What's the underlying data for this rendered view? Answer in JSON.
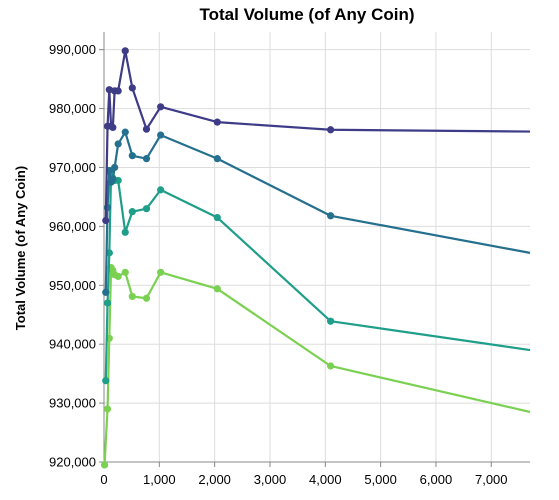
{
  "chart_data": {
    "type": "line",
    "title": "Total Volume (of Any Coin)",
    "xlabel": "",
    "ylabel": "Total Volume (of Any Coin)",
    "xlim": [
      0,
      7700
    ],
    "ylim": [
      920000,
      993000
    ],
    "grid": true,
    "legend": "none",
    "x_ticks": [
      {
        "value": 0,
        "label": "0"
      },
      {
        "value": 1000,
        "label": "1,000"
      },
      {
        "value": 2000,
        "label": "2,000"
      },
      {
        "value": 3000,
        "label": "3,000"
      },
      {
        "value": 4000,
        "label": "4,000"
      },
      {
        "value": 5000,
        "label": "5,000"
      },
      {
        "value": 6000,
        "label": "6,000"
      },
      {
        "value": 7000,
        "label": "7,000"
      }
    ],
    "y_ticks": [
      {
        "value": 920000,
        "label": "920,000"
      },
      {
        "value": 930000,
        "label": "930,000"
      },
      {
        "value": 940000,
        "label": "940,000"
      },
      {
        "value": 950000,
        "label": "950,000"
      },
      {
        "value": 960000,
        "label": "960,000"
      },
      {
        "value": 970000,
        "label": "970,000"
      },
      {
        "value": 980000,
        "label": "980,000"
      },
      {
        "value": 990000,
        "label": "990,000"
      }
    ],
    "series": [
      {
        "color": "#3e3b87",
        "x": [
          32,
          64,
          96,
          128,
          160,
          192,
          256,
          384,
          512,
          768,
          1024,
          2048,
          4096
        ],
        "y": [
          961000,
          977000,
          983200,
          977000,
          976800,
          983000,
          983000,
          989800,
          983500,
          976500,
          980300,
          977700,
          976400
        ],
        "tail": {
          "x": 7700,
          "y": 976100
        }
      },
      {
        "color": "#25708e",
        "x": [
          32,
          64,
          96,
          128,
          160,
          192,
          256,
          384,
          512,
          768,
          1024,
          2048,
          4096
        ],
        "y": [
          948800,
          963200,
          969500,
          967500,
          968000,
          970000,
          974000,
          976000,
          972000,
          971500,
          975500,
          971500,
          961800
        ],
        "tail": {
          "x": 7700,
          "y": 955500
        }
      },
      {
        "color": "#1f9e89",
        "x": [
          32,
          64,
          96,
          128,
          160,
          192,
          256,
          384,
          512,
          768,
          1024,
          2048,
          4096
        ],
        "y": [
          933800,
          947000,
          955500,
          969000,
          968200,
          967800,
          967800,
          959000,
          962500,
          963000,
          966200,
          961500,
          943900
        ],
        "tail": {
          "x": 7700,
          "y": 939000
        }
      },
      {
        "color": "#7ad151",
        "x": [
          10,
          64,
          96,
          128,
          160,
          192,
          256,
          384,
          512,
          768,
          1024,
          2048,
          4096
        ],
        "y": [
          919500,
          929000,
          941000,
          953000,
          952500,
          951800,
          951500,
          952200,
          948100,
          947800,
          952200,
          949400,
          936300
        ],
        "tail": {
          "x": 7700,
          "y": 928500
        }
      }
    ]
  }
}
